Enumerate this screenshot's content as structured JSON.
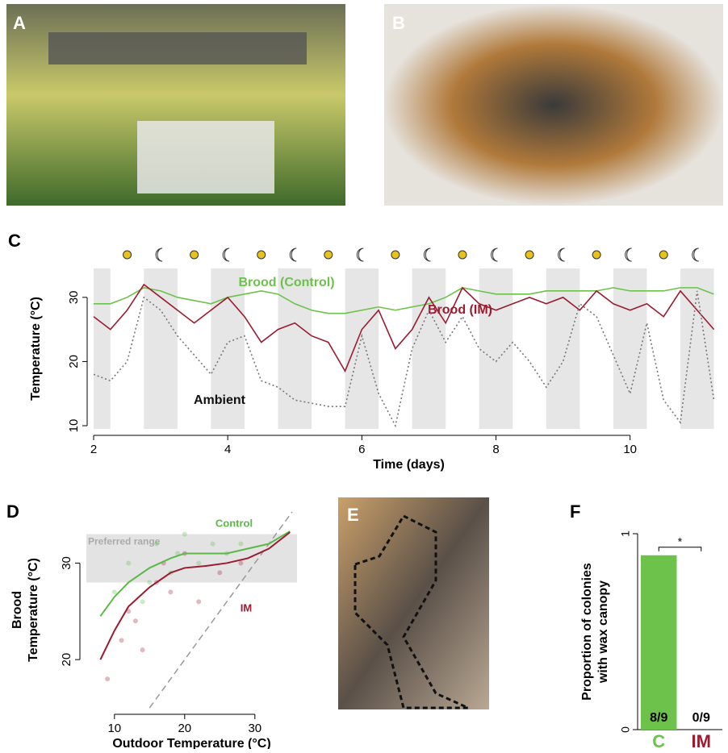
{
  "panel_labels": [
    "A",
    "B",
    "C",
    "D",
    "E",
    "F"
  ],
  "chart_data": [
    {
      "type": "line",
      "xlabel": "Time (days)",
      "ylabel": "Temperature (°C)",
      "x": [
        2,
        2.25,
        2.5,
        2.75,
        3,
        3.25,
        3.5,
        3.75,
        4,
        4.25,
        4.5,
        4.75,
        5,
        5.25,
        5.5,
        5.75,
        6,
        6.25,
        6.5,
        6.75,
        7,
        7.25,
        7.5,
        7.75,
        8,
        8.25,
        8.5,
        8.75,
        9,
        9.25,
        9.5,
        9.75,
        10,
        10.25,
        10.5,
        10.75,
        11,
        11.25
      ],
      "series": [
        {
          "name": "Brood (Control)",
          "color": "#6cc24a",
          "values": [
            29,
            29,
            30,
            31.5,
            31,
            30,
            29.5,
            29,
            30,
            30.5,
            31,
            30.5,
            29,
            28,
            27.5,
            27.5,
            28,
            28.5,
            28,
            28.5,
            29,
            30,
            31.5,
            31,
            30.5,
            30.5,
            30.5,
            31,
            31,
            31,
            31,
            31.5,
            31,
            31,
            31,
            31.5,
            31.5,
            30.5
          ]
        },
        {
          "name": "Brood (IM)",
          "color": "#9b1b30",
          "values": [
            27,
            25,
            28,
            32,
            30,
            28,
            26,
            28,
            30,
            27,
            23,
            25,
            26,
            24,
            23,
            18.5,
            25,
            28,
            22,
            25,
            30,
            26,
            31.5,
            29,
            28,
            29,
            30,
            29,
            30,
            28,
            31,
            29,
            28,
            29,
            27,
            31,
            28,
            25
          ]
        },
        {
          "name": "Ambient",
          "color": "#777777",
          "dash": true,
          "values": [
            18,
            17,
            20,
            30,
            28,
            24,
            21,
            18,
            23,
            24,
            17,
            16,
            14,
            13.5,
            13,
            13,
            24,
            15,
            10,
            22,
            28,
            23,
            27,
            22,
            20,
            23,
            20,
            16,
            20,
            29,
            27,
            21,
            15,
            26,
            14,
            10.5,
            31,
            14
          ]
        }
      ],
      "xlim": [
        2,
        11.4
      ],
      "xticks": [
        2,
        4,
        6,
        8,
        10
      ],
      "ylim": [
        9.5,
        34.5
      ],
      "yticks": [
        10,
        20,
        30
      ],
      "shaded_x": [
        [
          2,
          2.25
        ],
        [
          2.75,
          3.25
        ],
        [
          3.75,
          4.25
        ],
        [
          4.75,
          5.25
        ],
        [
          5.75,
          6.25
        ],
        [
          6.75,
          7.25
        ],
        [
          7.75,
          8.25
        ],
        [
          8.75,
          9.25
        ],
        [
          9.75,
          10.25
        ],
        [
          10.75,
          11.25
        ]
      ]
    },
    {
      "type": "line",
      "xlabel": "Outdoor Temperature (°C)",
      "ylabel": [
        "Brood",
        "Temperature (°C)"
      ],
      "band_label": "Preferred range",
      "band_y": [
        28,
        33
      ],
      "identity_line": true,
      "series": [
        {
          "name": "Control",
          "color": "#5cb848",
          "x": [
            8,
            10,
            12,
            15,
            18,
            20,
            23,
            26,
            29,
            32,
            35
          ],
          "values": [
            24.5,
            26.5,
            28,
            29.5,
            30.5,
            31,
            31,
            31,
            31.5,
            32,
            33.3
          ],
          "points_x": [
            10,
            12,
            14,
            16,
            18,
            20,
            22,
            24,
            26,
            28,
            15,
            19
          ],
          "points_y": [
            27,
            30,
            26,
            32,
            29,
            33,
            30,
            32,
            31,
            32,
            28,
            31
          ]
        },
        {
          "name": "IM",
          "color": "#9b1b30",
          "x": [
            8,
            10,
            12,
            15,
            18,
            20,
            23,
            26,
            29,
            32,
            35
          ],
          "values": [
            20,
            23,
            25.5,
            27.5,
            29,
            29.5,
            29.7,
            30,
            30.5,
            31.5,
            33.2
          ],
          "points_x": [
            9,
            11,
            12,
            14,
            16,
            18,
            20,
            22,
            25,
            28,
            13,
            17
          ],
          "points_y": [
            18,
            22,
            25,
            21,
            28,
            27,
            31,
            26,
            29,
            30,
            24,
            30
          ]
        }
      ],
      "xlim": [
        6,
        36
      ],
      "xticks": [
        10,
        20,
        30
      ],
      "ylim": [
        15,
        35.3
      ],
      "yticks": [
        20,
        30
      ]
    },
    {
      "type": "bar",
      "ylabel": [
        "Proportion of colonies",
        "with wax canopy"
      ],
      "categories": [
        "C",
        "IM"
      ],
      "colors": [
        "#6cc24a",
        "#9b1b30"
      ],
      "values": [
        0.89,
        0
      ],
      "value_labels": [
        "8/9",
        "0/9"
      ],
      "ylim": [
        0,
        1
      ],
      "yticks": [
        0,
        1
      ],
      "significance": "*"
    }
  ]
}
